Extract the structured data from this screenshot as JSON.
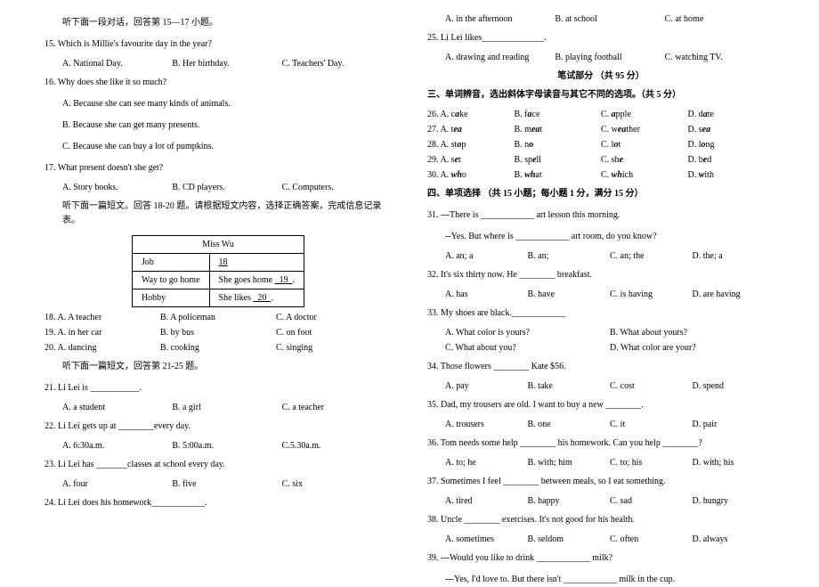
{
  "col1": {
    "intro1": "听下面一段对话，回答第 15—17 小题。",
    "q15": "15. Which is Millie's favourite day in the year?",
    "q15a": "A. National Day.",
    "q15b": "B. Her birthday.",
    "q15c": "C. Teachers' Day.",
    "q16": "16. Why does she like it so much?",
    "q16a": "A. Because she can see many kinds of animals.",
    "q16b": "B. Because she can get many presents.",
    "q16c": "C. Because she can buy a lot of pumpkins.",
    "q17": "17. What present doesn't she get?",
    "q17a": "A. Story books.",
    "q17b": "B. CD players.",
    "q17c": "C. Computers.",
    "intro2": "听下面一篇短文。回答 18-20 题。请根据短文内容，选择正确答案，完成信息记录表。",
    "table": {
      "header": "Miss Wu",
      "r1c1": "Job",
      "r1c2": "  18  ",
      "r2c1": "Way to go home",
      "r2c2": "She goes home   19  .",
      "r3c1": "Hobby",
      "r3c2": "She likes   20  ."
    },
    "q18": "18. A. A teacher",
    "q18b": "B. A policeman",
    "q18c": "C. A doctor",
    "q19": "19. A. in her car",
    "q19b": "B. by bus",
    "q19c": "C. on foot",
    "q20": "20. A. dancing",
    "q20b": "B. cooking",
    "q20c": "C. singing",
    "intro3": "听下面一篇短文，回答第 21-25 题。",
    "q21": "21. Li Lei is ___________.",
    "q21a": "A. a student",
    "q21b": "B. a girl",
    "q21c": "C. a teacher",
    "q22": "22. Li Lei gets up at ________every day.",
    "q22a": "A. 6:30a.m.",
    "q22b": "B. 5:00a.m.",
    "q22c": "C.5.30a.m.",
    "q23": "23. Li Lei has _______classes at school every day.",
    "q23a": "A. four",
    "q23b": "B. five",
    "q23c": "C. six",
    "q24": "24. Li Lei does his homework____________."
  },
  "col2": {
    "q24a": "A. in the afternoon",
    "q24b": "B. at school",
    "q24c": "C. at home",
    "q25": "25. Li Lei likes______________.",
    "q25a": "A. drawing and reading",
    "q25b": "B. playing football",
    "q25c": "C. watching TV.",
    "written_header": "笔试部分 （共 95 分）",
    "sec3": "三、单词辨音，选出斜体字母读音与其它不同的选项。（共 5 分）",
    "q26a": "26. A. c",
    "q26ai": "a",
    "q26ae": "ke",
    "q26b": "B. f",
    "q26bi": "a",
    "q26be": "ce",
    "q26c": "C. ",
    "q26ci": "a",
    "q26ce": "pple",
    "q26d": "D. d",
    "q26di": "a",
    "q26de": "te",
    "q27a": "27. A. t",
    "q27ai": "ea",
    "q27ae": "",
    "q27b": "B. m",
    "q27bi": "ea",
    "q27be": "t",
    "q27c": "C. w",
    "q27ci": "ea",
    "q27ce": "ther",
    "q27d": "D. s",
    "q27di": "ea",
    "q27de": "",
    "q28a": "28. A. st",
    "q28ai": "o",
    "q28ae": "p",
    "q28b": "B. n",
    "q28bi": "o",
    "q28be": "",
    "q28c": "C. l",
    "q28ci": "o",
    "q28ce": "t",
    "q28d": "D. l",
    "q28di": "o",
    "q28de": "ng",
    "q29a": "29. A. s",
    "q29ai": "e",
    "q29ae": "t",
    "q29b": "B. sp",
    "q29bi": "e",
    "q29be": "ll",
    "q29c": "C. sh",
    "q29ci": "e",
    "q29ce": "",
    "q29d": "D. b",
    "q29di": "e",
    "q29de": "d",
    "q30a": "30. A. ",
    "q30ai": "wh",
    "q30ae": "o",
    "q30b": "B. ",
    "q30bi": "wh",
    "q30be": "at",
    "q30c": "C. ",
    "q30ci": "wh",
    "q30ce": "ich",
    "q30d": "D. ",
    "q30di": "w",
    "q30de": "ith",
    "sec4": "四、单项选择  （共 15 小题；每小题 1 分，满分 15 分）",
    "q31": "31. ---There is ____________ art lesson this morning.",
    "q31b": "--Yes. But where is ____________ art room, do you know?",
    "q31o1": "A. an; a",
    "q31o2": "B. an;",
    "q31o3": "C. an; the",
    "q31o4": "D. the; a",
    "q32": "32. It's six thirty now. He ________ breakfast.",
    "q32o1": "A. has",
    "q32o2": "B. have",
    "q32o3": "C. is having",
    "q32o4": "D. are having",
    "q33": "33. My shoes are black.____________",
    "q33o1": "A. What color is yours?",
    "q33o2": "B. What about yours?",
    "q33o3": "C. What about you?",
    "q33o4": "D. What color are your?",
    "q34": "34. Those flowers ________ Kate $56.",
    "q34o1": "A. pay",
    "q34o2": "B. take",
    "q34o3": "C. cost",
    "q34o4": "D. spend",
    "q35": "35. Dad, my trousers are old. I want to buy a new ________.",
    "q35o1": "A. trousers",
    "q35o2": "B. one",
    "q35o3": "C. it",
    "q35o4": "D. pair",
    "q36": "36. Tom needs some help ________ his homework. Can you help ________?",
    "q36o1": "A. to; he",
    "q36o2": "B. with; him",
    "q36o3": "C. to; his",
    "q36o4": "D. with; his",
    "q37": "37. Sometimes I feel ________ between meals, so I eat something.",
    "q37o1": "A. tired",
    "q37o2": "B. happy",
    "q37o3": "C. sad",
    "q37o4": "D. hungry",
    "q38": "38. Uncle ________ exercises. It's not good for his health.",
    "q38o1": "A. sometimes",
    "q38o2": "B. seldom",
    "q38o3": "C. often",
    "q38o4": "D. always",
    "q39": "39. ---Would you like to drink ____________ milk?",
    "q39b": "---Yes, I'd love to. But there isn't ____________ milk in the cup."
  }
}
